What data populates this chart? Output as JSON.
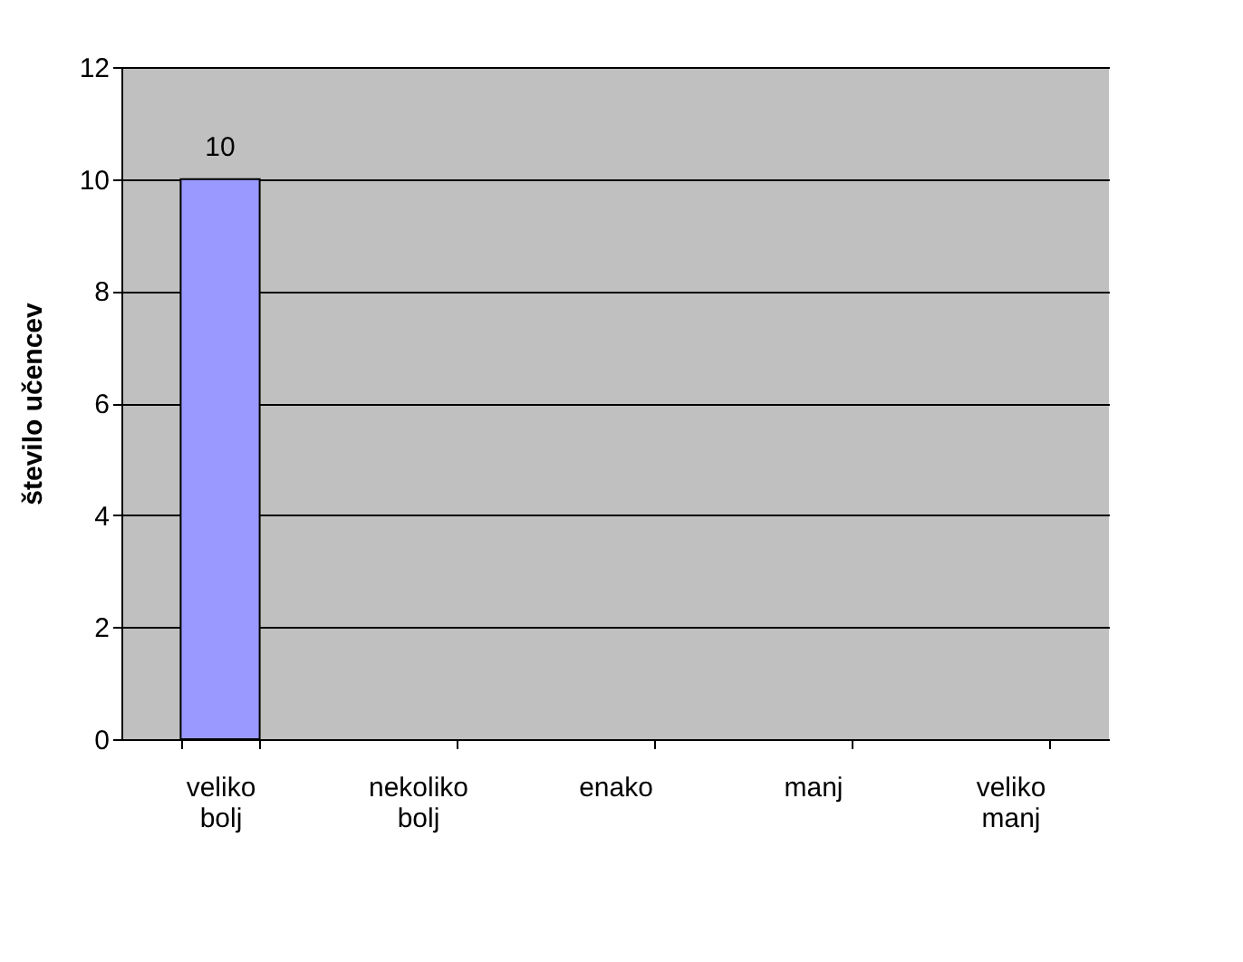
{
  "chart_data": {
    "type": "bar",
    "ylabel": "število učencev",
    "categories": [
      "veliko bolj",
      "nekoliko bolj",
      "enako",
      "manj",
      "veliko manj"
    ],
    "values": [
      10,
      0,
      0,
      0,
      0
    ],
    "color": "#9999ff",
    "value_labels": [
      "10",
      null,
      null,
      null,
      null
    ],
    "ylim": [
      0,
      12
    ],
    "yticks": [
      0,
      2,
      4,
      6,
      8,
      10,
      12
    ],
    "grid": "y"
  }
}
